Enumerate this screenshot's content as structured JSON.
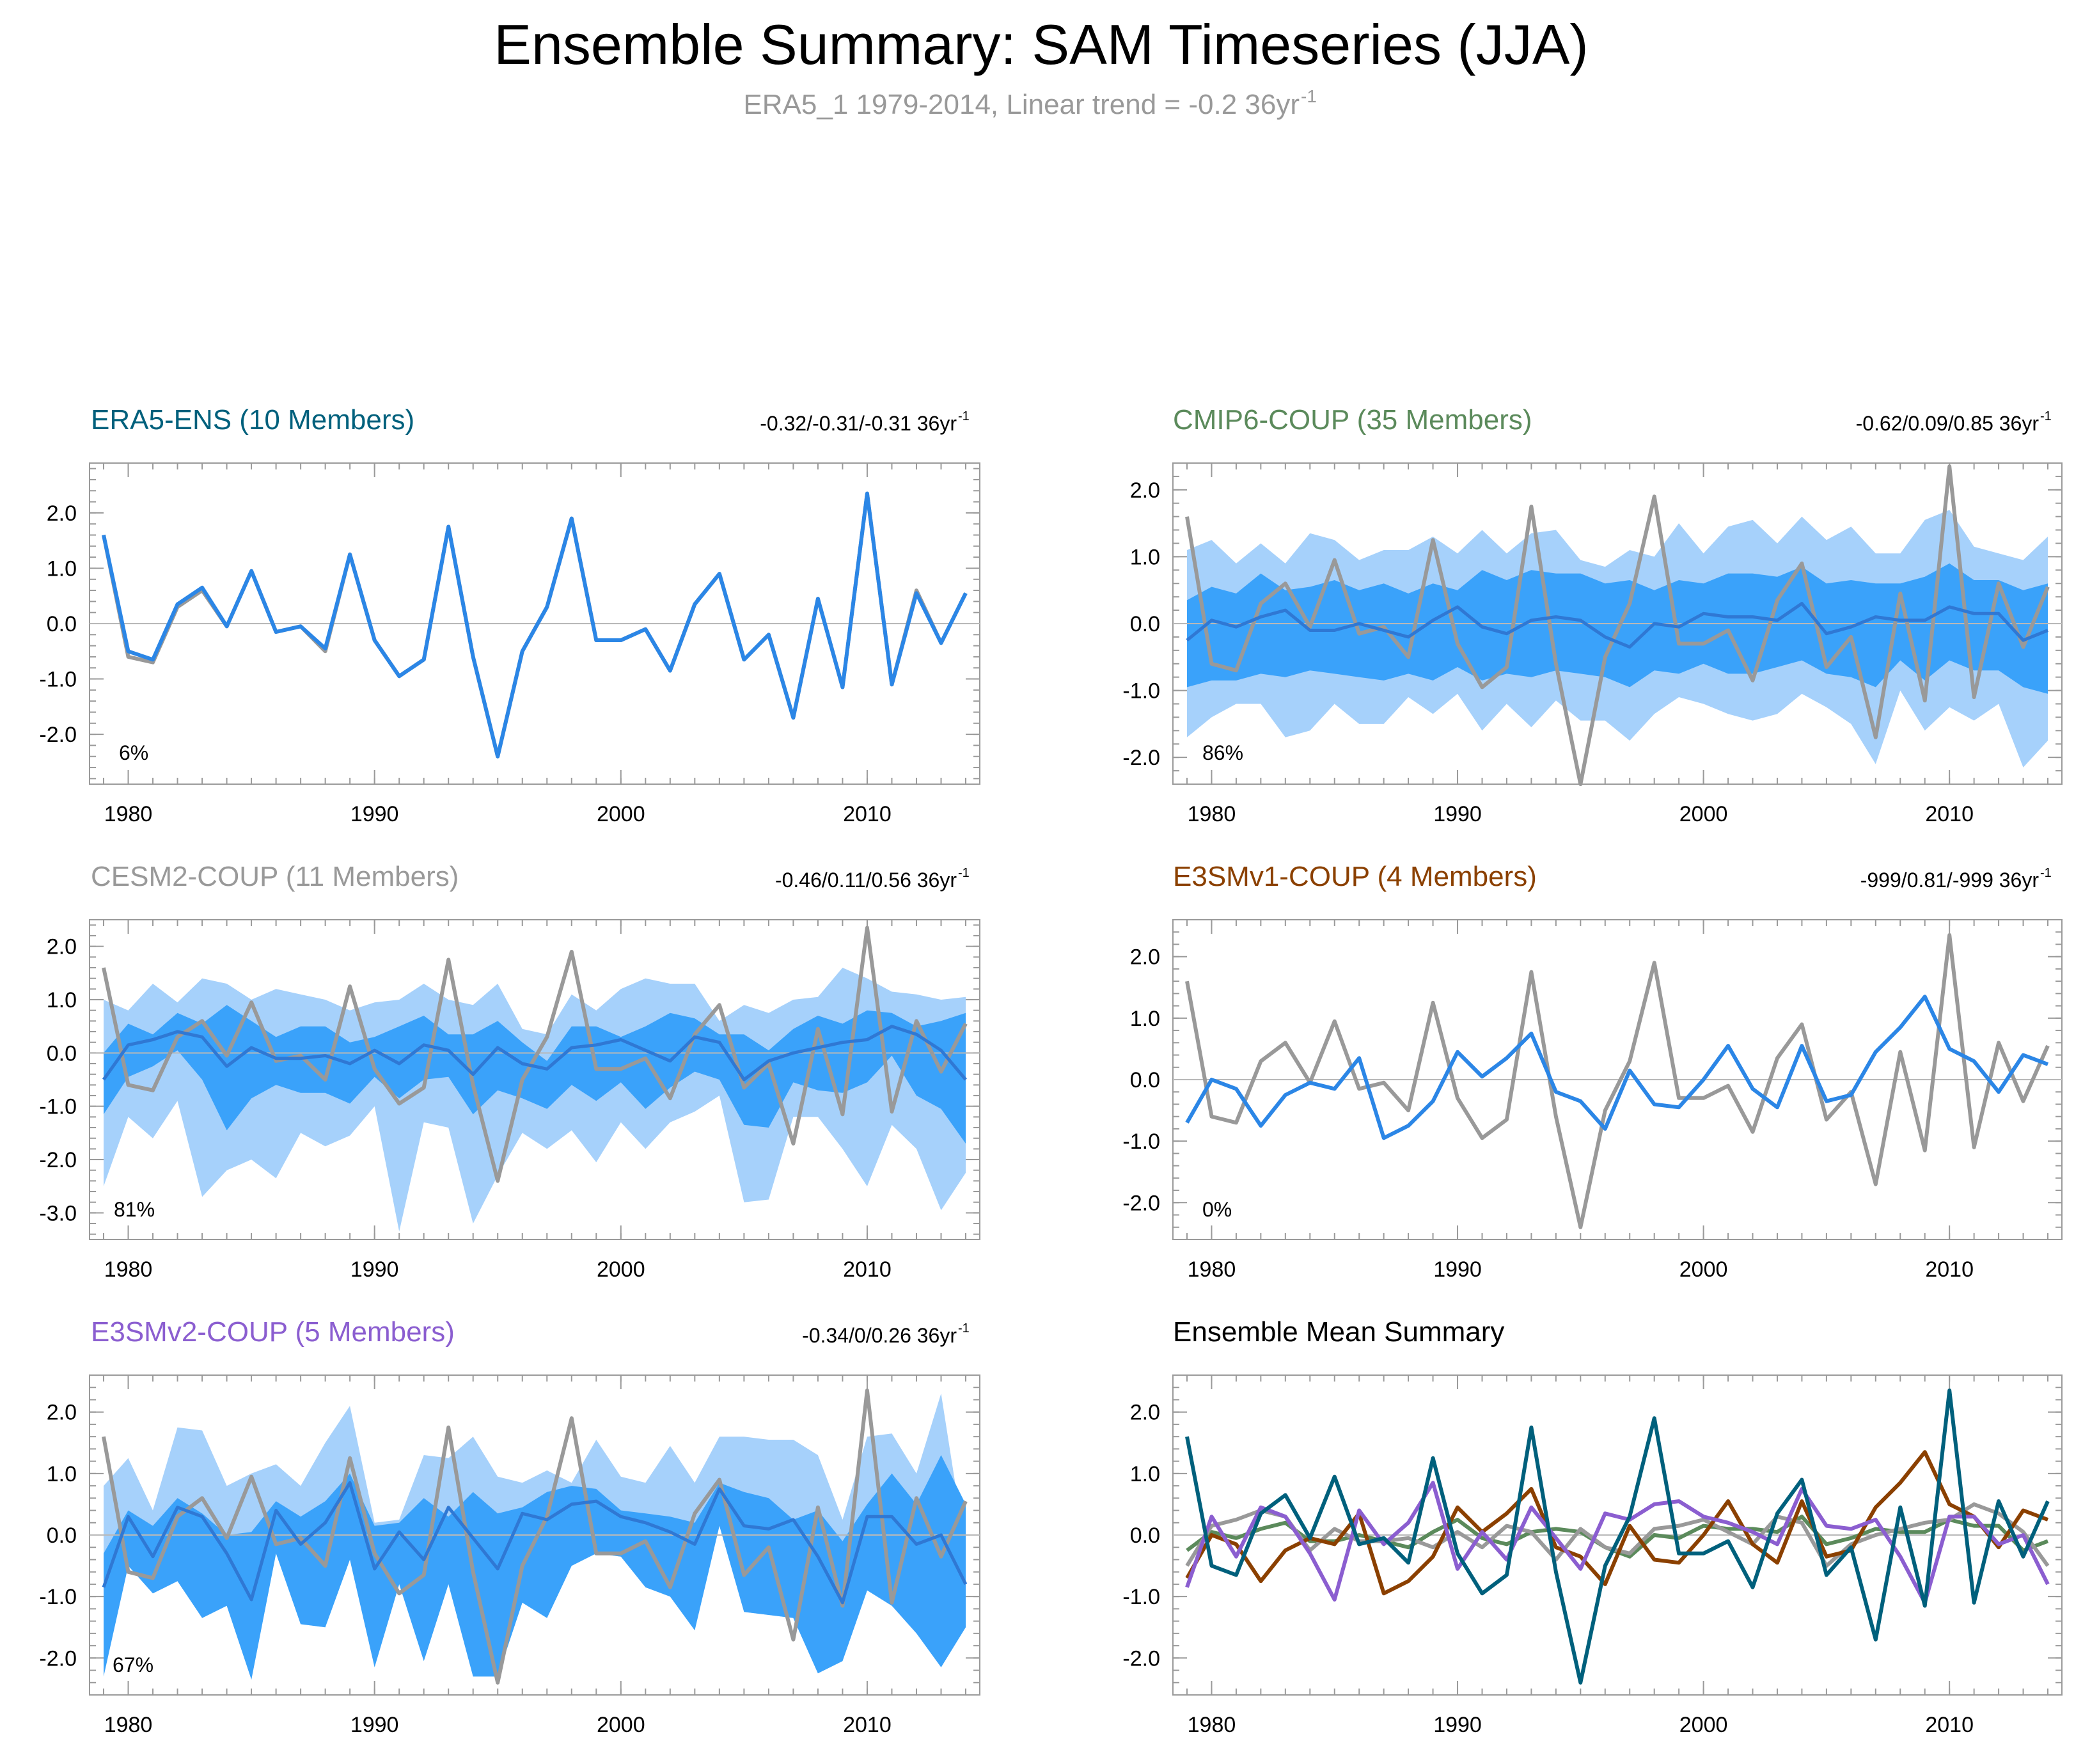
{
  "title": "Ensemble Summary: SAM Timeseries (JJA)",
  "subtitle": {
    "main": "ERA5_1 1979-2014, Linear trend = -0.2 36yr",
    "sup": "-1"
  },
  "colors": {
    "observation": "#999999",
    "ens_mean": "#2b86e6",
    "spread_outer": "#a6d1fb",
    "spread_inner": "#3aa2fa"
  },
  "chart_data": {
    "type": "line",
    "years": [
      1979,
      1980,
      1981,
      1982,
      1983,
      1984,
      1985,
      1986,
      1987,
      1988,
      1989,
      1990,
      1991,
      1992,
      1993,
      1994,
      1995,
      1996,
      1997,
      1998,
      1999,
      2000,
      2001,
      2002,
      2003,
      2004,
      2005,
      2006,
      2007,
      2008,
      2009,
      2010,
      2011,
      2012,
      2013,
      2014
    ],
    "x_ticks": [
      1980,
      1990,
      2000,
      2010
    ],
    "x_tick_labels": [
      "1980",
      "1990",
      "2000",
      "2010"
    ],
    "observation": {
      "name": "ERA5_1",
      "values": [
        1.6,
        -0.6,
        -0.7,
        0.3,
        0.6,
        -0.05,
        0.95,
        -0.15,
        -0.05,
        -0.5,
        1.25,
        -0.3,
        -0.95,
        -0.65,
        1.75,
        -0.6,
        -2.4,
        -0.5,
        0.3,
        1.9,
        -0.3,
        -0.3,
        -0.1,
        -0.85,
        0.35,
        0.9,
        -0.65,
        -0.2,
        -1.7,
        0.45,
        -1.15,
        2.35,
        -1.1,
        0.6,
        -0.35,
        0.55
      ]
    },
    "panels": [
      {
        "key": "era5",
        "name": "ERA5-ENS (10 Members)",
        "color": "#00607c",
        "trend": "-0.32/-0.31/-0.31 36yr",
        "trend_sup": "-1",
        "percent": "6%",
        "ylim": [
          -2.9,
          2.9
        ],
        "yticks": [
          2.0,
          1.0,
          0.0,
          -1.0,
          -2.0
        ],
        "ytick_labels": [
          "2.0",
          "1.0",
          "0.0",
          "-1.0",
          "-2.0"
        ],
        "mean": [
          1.6,
          -0.5,
          -0.65,
          0.35,
          0.65,
          -0.05,
          0.95,
          -0.15,
          -0.05,
          -0.45,
          1.25,
          -0.3,
          -0.95,
          -0.65,
          1.75,
          -0.6,
          -2.4,
          -0.5,
          0.3,
          1.9,
          -0.3,
          -0.3,
          -0.1,
          -0.85,
          0.35,
          0.9,
          -0.65,
          -0.2,
          -1.7,
          0.45,
          -1.15,
          2.35,
          -1.1,
          0.55,
          -0.35,
          0.55
        ]
      },
      {
        "key": "cmip6",
        "name": "CMIP6-COUP (35 Members)",
        "color": "#5b8a5b",
        "trend": "-0.62/0.09/0.85 36yr",
        "trend_sup": "-1",
        "percent": "86%",
        "ylim": [
          -2.4,
          2.4
        ],
        "yticks": [
          2.0,
          1.0,
          0.0,
          -1.0,
          -2.0
        ],
        "ytick_labels": [
          "2.0",
          "1.0",
          "0.0",
          "-1.0",
          "-2.0"
        ],
        "mean": [
          -0.25,
          0.05,
          -0.05,
          0.1,
          0.2,
          -0.1,
          -0.1,
          0.0,
          -0.1,
          -0.2,
          0.05,
          0.25,
          -0.05,
          -0.15,
          0.05,
          0.1,
          0.05,
          -0.2,
          -0.35,
          0.0,
          -0.05,
          0.15,
          0.1,
          0.1,
          0.05,
          0.3,
          -0.15,
          -0.05,
          0.1,
          0.05,
          0.05,
          0.25,
          0.15,
          0.15,
          -0.25,
          -0.1
        ],
        "outer_upper": [
          1.1,
          1.25,
          0.9,
          1.2,
          0.9,
          1.35,
          1.25,
          0.95,
          1.1,
          1.1,
          1.3,
          1.05,
          1.4,
          1.05,
          1.35,
          1.4,
          0.95,
          0.85,
          1.1,
          1.0,
          1.5,
          1.05,
          1.45,
          1.55,
          1.2,
          1.6,
          1.25,
          1.45,
          1.05,
          1.05,
          1.55,
          1.7,
          1.15,
          1.05,
          0.95,
          1.3
        ],
        "outer_lower": [
          -1.7,
          -1.4,
          -1.2,
          -1.2,
          -1.7,
          -1.6,
          -1.2,
          -1.5,
          -1.5,
          -1.1,
          -1.35,
          -1.05,
          -1.6,
          -1.2,
          -1.55,
          -1.15,
          -1.45,
          -1.45,
          -1.75,
          -1.35,
          -1.1,
          -1.2,
          -1.35,
          -1.45,
          -1.35,
          -1.05,
          -1.25,
          -1.5,
          -2.1,
          -1.0,
          -1.6,
          -1.25,
          -1.45,
          -1.2,
          -2.15,
          -1.75
        ],
        "inner_upper": [
          0.35,
          0.55,
          0.45,
          0.75,
          0.5,
          0.55,
          0.65,
          0.5,
          0.6,
          0.45,
          0.6,
          0.5,
          0.8,
          0.65,
          0.8,
          0.75,
          0.75,
          0.6,
          0.65,
          0.5,
          0.65,
          0.6,
          0.75,
          0.75,
          0.7,
          0.85,
          0.6,
          0.65,
          0.6,
          0.6,
          0.7,
          0.9,
          0.65,
          0.65,
          0.5,
          0.6
        ],
        "inner_lower": [
          -0.95,
          -0.85,
          -0.85,
          -0.75,
          -0.8,
          -0.7,
          -0.75,
          -0.8,
          -0.85,
          -0.75,
          -0.85,
          -0.65,
          -0.85,
          -0.75,
          -0.8,
          -0.7,
          -0.75,
          -0.8,
          -0.95,
          -0.7,
          -0.75,
          -0.6,
          -0.75,
          -0.75,
          -0.65,
          -0.55,
          -0.75,
          -0.8,
          -0.95,
          -0.55,
          -0.85,
          -0.55,
          -0.7,
          -0.7,
          -0.95,
          -1.05
        ]
      },
      {
        "key": "cesm2",
        "name": "CESM2-COUP (11 Members)",
        "color": "#999999",
        "trend": "-0.46/0.11/0.56 36yr",
        "trend_sup": "-1",
        "percent": "81%",
        "ylim": [
          -3.5,
          2.5
        ],
        "yticks": [
          2.0,
          1.0,
          0.0,
          -1.0,
          -2.0,
          -3.0
        ],
        "ytick_labels": [
          "2.0",
          "1.0",
          "0.0",
          "-1.0",
          "-2.0",
          "-3.0"
        ],
        "mean": [
          -0.5,
          0.15,
          0.25,
          0.4,
          0.3,
          -0.25,
          0.1,
          -0.1,
          -0.1,
          -0.05,
          -0.2,
          0.05,
          -0.2,
          0.15,
          0.05,
          -0.4,
          0.1,
          -0.2,
          -0.3,
          0.1,
          0.15,
          0.25,
          0.05,
          -0.15,
          0.3,
          0.2,
          -0.5,
          -0.15,
          0.0,
          0.1,
          0.2,
          0.25,
          0.5,
          0.35,
          0.05,
          -0.5
        ],
        "outer_upper": [
          1.0,
          0.8,
          1.3,
          0.95,
          1.4,
          1.3,
          1.0,
          1.2,
          1.1,
          1.0,
          0.8,
          0.95,
          1.0,
          1.3,
          1.0,
          0.9,
          1.3,
          0.45,
          0.35,
          1.1,
          0.8,
          1.2,
          1.4,
          1.3,
          1.3,
          0.6,
          0.9,
          0.75,
          1.0,
          1.05,
          1.6,
          1.4,
          1.15,
          1.1,
          1.0,
          1.05
        ],
        "outer_lower": [
          -2.5,
          -1.2,
          -1.6,
          -0.9,
          -2.7,
          -2.2,
          -2.0,
          -2.35,
          -1.5,
          -1.75,
          -1.55,
          -1.0,
          -3.35,
          -1.3,
          -1.4,
          -3.2,
          -2.3,
          -1.5,
          -1.8,
          -1.45,
          -2.05,
          -1.3,
          -1.8,
          -1.3,
          -1.1,
          -0.8,
          -2.8,
          -2.75,
          -1.2,
          -1.2,
          -1.8,
          -2.5,
          -1.35,
          -1.8,
          -2.95,
          -2.25
        ],
        "inner_upper": [
          0.0,
          0.55,
          0.35,
          0.75,
          0.55,
          0.9,
          0.6,
          0.3,
          0.5,
          0.5,
          0.2,
          0.3,
          0.5,
          0.7,
          0.35,
          0.35,
          0.6,
          0.2,
          -0.15,
          0.5,
          0.5,
          0.3,
          0.5,
          0.75,
          0.65,
          0.35,
          0.35,
          0.05,
          0.45,
          0.7,
          0.55,
          0.8,
          0.75,
          0.5,
          0.6,
          0.75
        ],
        "inner_lower": [
          -1.15,
          -0.45,
          -0.25,
          0.05,
          -0.5,
          -1.45,
          -0.85,
          -0.6,
          -0.75,
          -0.75,
          -0.95,
          -0.45,
          -0.85,
          -0.5,
          -0.45,
          -1.15,
          -0.7,
          -0.85,
          -1.05,
          -0.6,
          -0.9,
          -0.55,
          -1.05,
          -0.65,
          -0.35,
          -0.5,
          -1.35,
          -1.4,
          -0.55,
          -0.7,
          -0.75,
          -0.55,
          -0.05,
          -0.8,
          -1.05,
          -1.7
        ]
      },
      {
        "key": "e3smv1",
        "name": "E3SMv1-COUP (4 Members)",
        "color": "#8b4000",
        "trend": "-999/0.81/-999 36yr",
        "trend_sup": "-1",
        "percent": "0%",
        "ylim": [
          -2.6,
          2.6
        ],
        "yticks": [
          2.0,
          1.0,
          0.0,
          -1.0,
          -2.0
        ],
        "ytick_labels": [
          "2.0",
          "1.0",
          "0.0",
          "-1.0",
          "-2.0"
        ],
        "mean": [
          -0.7,
          0.0,
          -0.15,
          -0.75,
          -0.25,
          -0.05,
          -0.15,
          0.35,
          -0.95,
          -0.75,
          -0.35,
          0.45,
          0.05,
          0.35,
          0.75,
          -0.2,
          -0.35,
          -0.8,
          0.15,
          -0.4,
          -0.45,
          0.0,
          0.55,
          -0.15,
          -0.45,
          0.55,
          -0.35,
          -0.25,
          0.45,
          0.85,
          1.35,
          0.5,
          0.3,
          -0.2,
          0.4,
          0.25
        ]
      },
      {
        "key": "e3smv2",
        "name": "E3SMv2-COUP (5 Members)",
        "color": "#8b5ed0",
        "trend": "-0.34/0/0.26 36yr",
        "trend_sup": "-1",
        "percent": "67%",
        "ylim": [
          -2.6,
          2.6
        ],
        "yticks": [
          2.0,
          1.0,
          0.0,
          -1.0,
          -2.0
        ],
        "ytick_labels": [
          "2.0",
          "1.0",
          "0.0",
          "-1.0",
          "-2.0"
        ],
        "mean": [
          -0.85,
          0.3,
          -0.35,
          0.45,
          0.3,
          -0.3,
          -1.05,
          0.4,
          -0.15,
          0.2,
          0.85,
          -0.55,
          0.05,
          -0.4,
          0.45,
          -0.05,
          -0.55,
          0.35,
          0.25,
          0.5,
          0.55,
          0.3,
          0.2,
          0.05,
          -0.15,
          0.75,
          0.15,
          0.1,
          0.25,
          -0.35,
          -1.1,
          0.3,
          0.3,
          -0.15,
          0.0,
          -0.8
        ],
        "outer_upper": [
          0.8,
          1.25,
          0.4,
          1.75,
          1.7,
          0.8,
          1.0,
          1.15,
          0.8,
          1.5,
          2.1,
          0.2,
          0.25,
          1.3,
          1.25,
          1.6,
          0.95,
          0.85,
          1.05,
          0.85,
          1.55,
          0.95,
          0.85,
          1.45,
          0.85,
          1.6,
          1.6,
          1.55,
          1.55,
          1.3,
          0.25,
          1.6,
          1.65,
          1.0,
          2.3,
          -0.25
        ],
        "outer_lower": [
          -2.3,
          -0.5,
          -0.95,
          -0.75,
          -1.35,
          -1.15,
          -2.35,
          -0.3,
          -1.45,
          -1.5,
          -0.4,
          -2.15,
          -0.8,
          -2.05,
          -0.8,
          -2.3,
          -2.3,
          -1.1,
          -1.35,
          -0.5,
          -0.3,
          -0.35,
          -0.85,
          -1.0,
          -1.55,
          0.15,
          -1.25,
          -1.3,
          -1.35,
          -2.25,
          -2.05,
          -0.9,
          -1.15,
          -1.6,
          -2.15,
          -1.5
        ],
        "inner_upper": [
          -0.3,
          0.4,
          0.15,
          0.6,
          0.35,
          0.0,
          0.05,
          0.55,
          0.3,
          0.55,
          1.0,
          0.15,
          0.2,
          0.6,
          0.3,
          0.7,
          0.35,
          0.45,
          0.7,
          0.8,
          0.75,
          0.4,
          0.35,
          0.3,
          0.2,
          0.85,
          0.7,
          0.6,
          0.25,
          0.4,
          -0.1,
          0.5,
          1.0,
          0.5,
          1.3,
          0.5
        ],
        "inner_lower": [
          -2.3,
          -0.5,
          -0.95,
          -0.75,
          -1.35,
          -1.15,
          -2.35,
          -0.3,
          -1.45,
          -1.5,
          -0.4,
          -2.15,
          -0.8,
          -2.05,
          -0.8,
          -2.3,
          -2.3,
          -1.1,
          -1.35,
          -0.5,
          -0.3,
          -0.35,
          -0.85,
          -1.0,
          -1.55,
          0.15,
          -1.25,
          -1.3,
          -1.35,
          -2.25,
          -2.05,
          -0.9,
          -1.15,
          -1.6,
          -2.15,
          -1.5
        ]
      },
      {
        "key": "summary",
        "name": "Ensemble Mean Summary",
        "color": "#000000",
        "ylim": [
          -2.6,
          2.6
        ],
        "yticks": [
          2.0,
          1.0,
          0.0,
          -1.0,
          -2.0
        ],
        "ytick_labels": [
          "2.0",
          "1.0",
          "0.0",
          "-1.0",
          "-2.0"
        ],
        "series_keys": [
          "cmip6",
          "cesm2",
          "e3smv1",
          "e3smv2",
          "era5"
        ]
      }
    ]
  }
}
